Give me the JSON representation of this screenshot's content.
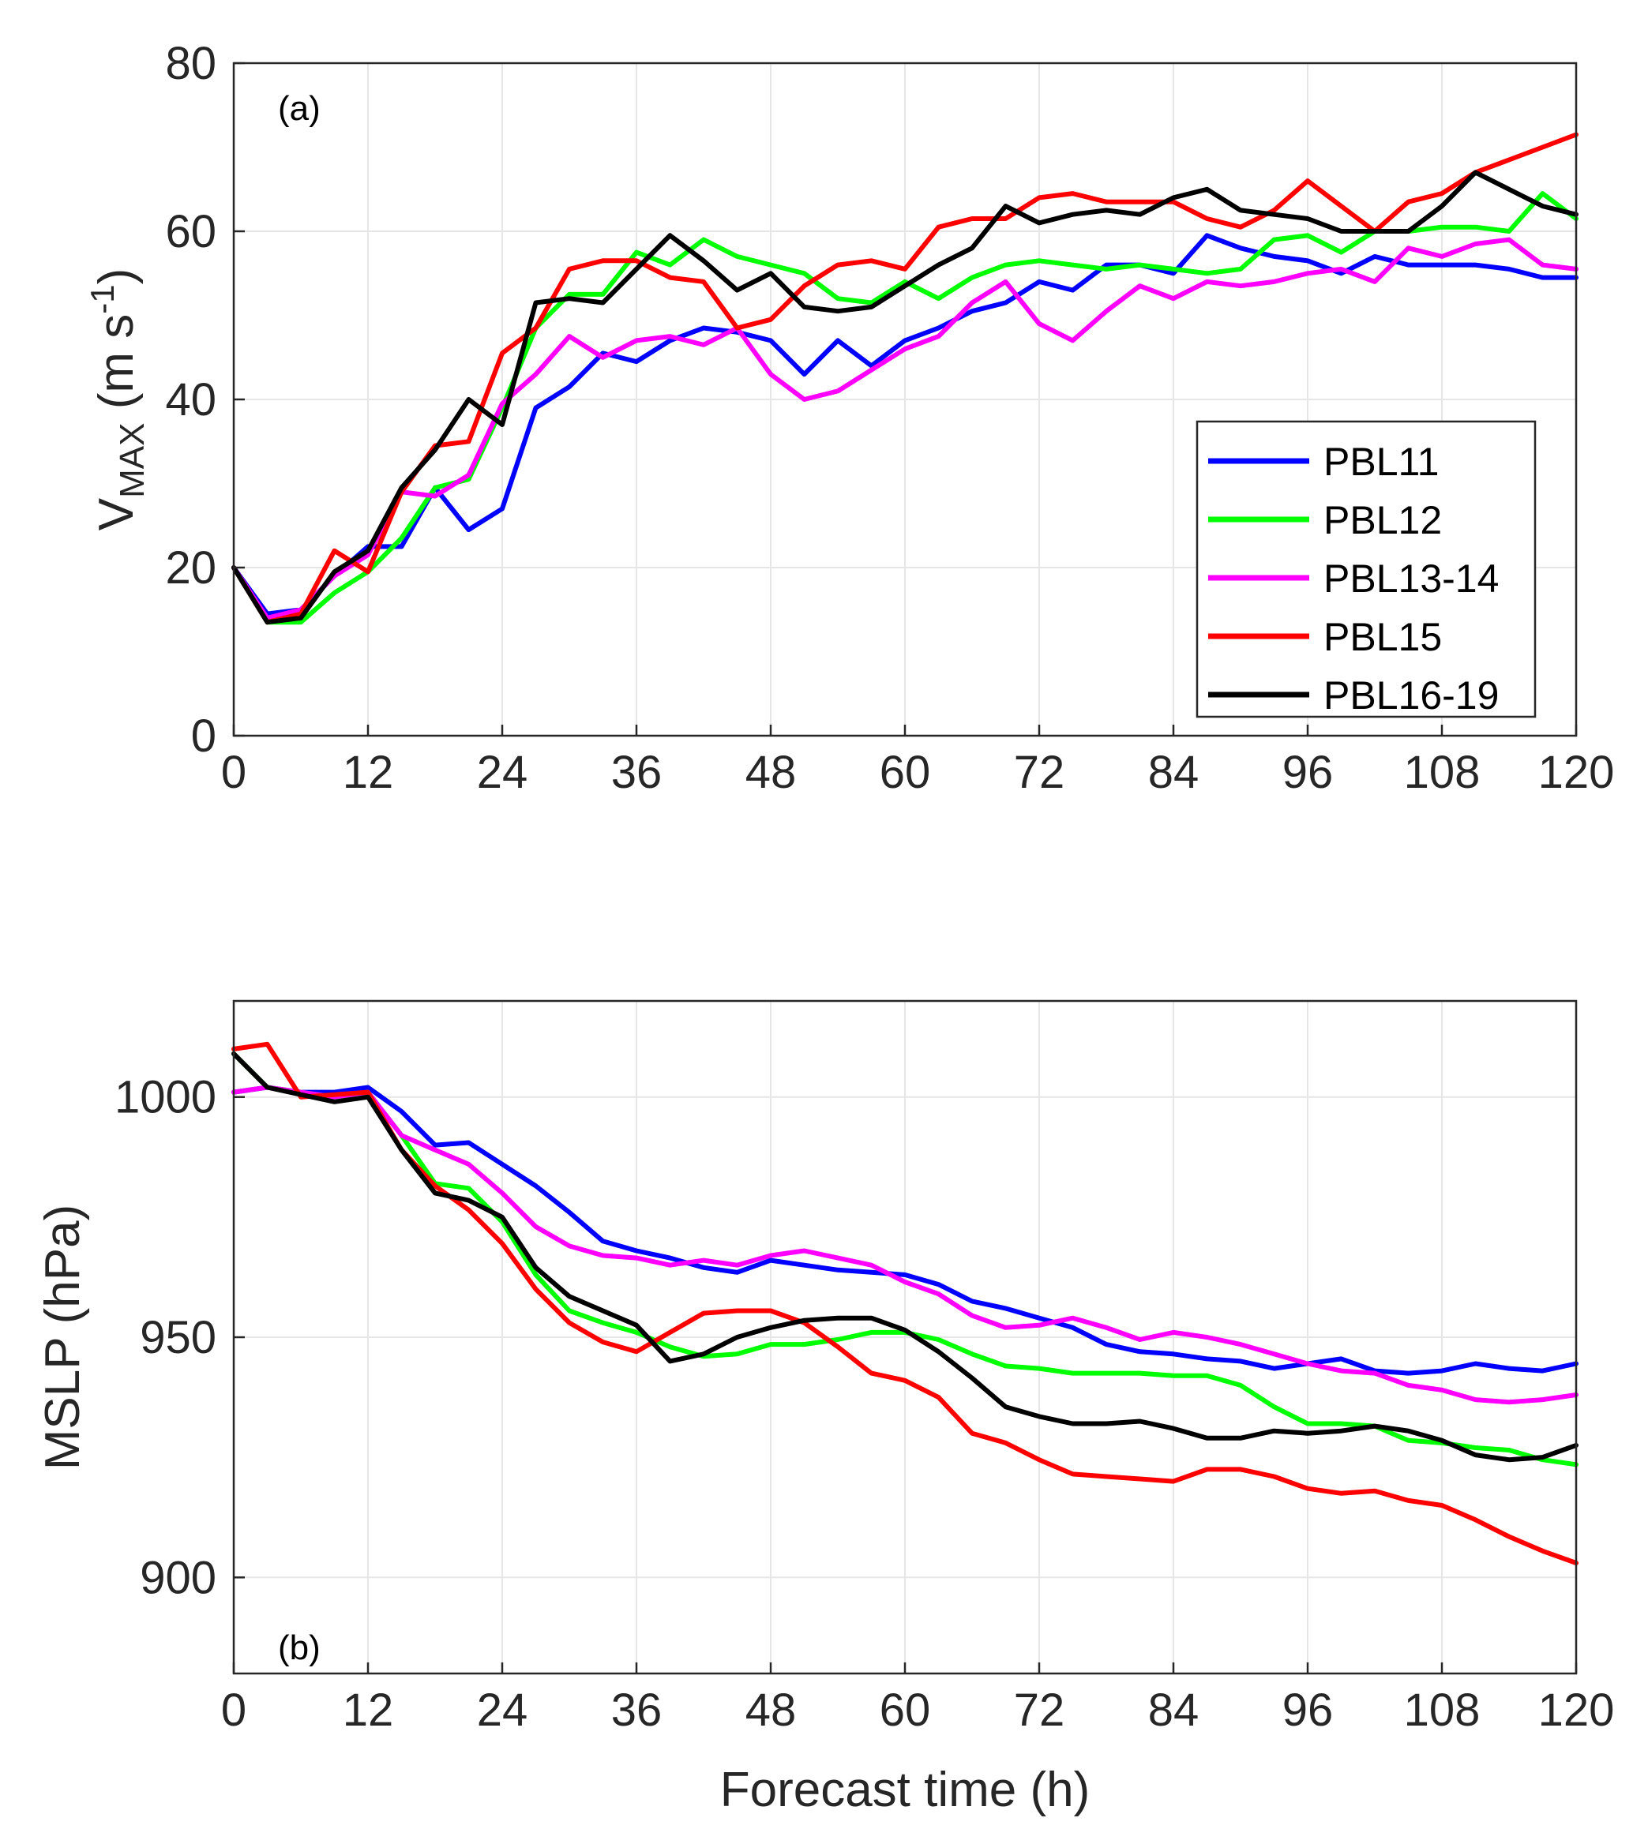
{
  "chart_data": [
    {
      "type": "line",
      "panel_label": "(a)",
      "xlabel": "",
      "ylabel_main": "V",
      "ylabel_sub": "MAX",
      "ylabel_units_open": " (m s",
      "ylabel_units_sup": "-1",
      "ylabel_units_close": ")",
      "xlim": [
        0,
        120
      ],
      "ylim": [
        0,
        80
      ],
      "xticks": [
        "0",
        "12",
        "24",
        "36",
        "48",
        "60",
        "72",
        "84",
        "96",
        "108",
        "120"
      ],
      "yticks": [
        "0",
        "20",
        "40",
        "60",
        "80"
      ],
      "grid": true,
      "legend_position": "right-middle",
      "x": [
        0,
        3,
        6,
        9,
        12,
        15,
        18,
        21,
        24,
        27,
        30,
        33,
        36,
        39,
        42,
        45,
        48,
        51,
        54,
        57,
        60,
        63,
        66,
        69,
        72,
        75,
        78,
        81,
        84,
        87,
        90,
        93,
        96,
        99,
        102,
        105,
        108,
        111,
        114,
        117,
        120
      ],
      "series": [
        {
          "name": "PBL11",
          "color": "#0000ff",
          "values": [
            20,
            14.5,
            15,
            19,
            22.5,
            22.5,
            29.5,
            24.5,
            27,
            39,
            41.5,
            45.5,
            44.5,
            47,
            48.5,
            48,
            47,
            43,
            47,
            44,
            47,
            48.5,
            50.5,
            51.5,
            54,
            53,
            56,
            56,
            55,
            59.5,
            58,
            57,
            56.5,
            55,
            57,
            56,
            56,
            56,
            55.5,
            54.5,
            54.5
          ]
        },
        {
          "name": "PBL12",
          "color": "#00ff00",
          "values": [
            20,
            13.5,
            13.5,
            17,
            19.5,
            23.5,
            29.5,
            30.5,
            39,
            48.5,
            52.5,
            52.5,
            57.5,
            56,
            59,
            57,
            56,
            55,
            52,
            51.5,
            54,
            52,
            54.5,
            56,
            56.5,
            56,
            55.5,
            56,
            55.5,
            55,
            55.5,
            59,
            59.5,
            57.5,
            60,
            60,
            60.5,
            60.5,
            60,
            64.5,
            61.5
          ]
        },
        {
          "name": "PBL13-14",
          "color": "#ff00ff",
          "values": [
            20,
            14,
            15,
            19,
            21.5,
            29,
            28.5,
            31,
            39.5,
            43,
            47.5,
            45,
            47,
            47.5,
            46.5,
            48.5,
            43,
            40,
            41,
            43.5,
            46,
            47.5,
            51.5,
            54,
            49,
            47,
            50.5,
            53.5,
            52,
            54,
            53.5,
            54,
            55,
            55.5,
            54,
            58,
            57,
            58.5,
            59,
            56,
            55.5
          ]
        },
        {
          "name": "PBL15",
          "color": "#ff0000",
          "values": [
            20,
            13.5,
            14.5,
            22,
            19.5,
            29,
            34.5,
            35,
            45.5,
            48.5,
            55.5,
            56.5,
            56.5,
            54.5,
            54,
            48.5,
            49.5,
            53.5,
            56,
            56.5,
            55.5,
            60.5,
            61.5,
            61.5,
            64,
            64.5,
            63.5,
            63.5,
            63.5,
            61.5,
            60.5,
            62.5,
            66,
            63,
            60,
            63.5,
            64.5,
            67,
            68.5,
            70,
            71.5
          ]
        },
        {
          "name": "PBL16-19",
          "color": "#000000",
          "values": [
            20,
            13.5,
            14,
            19.5,
            22,
            29.5,
            34,
            40,
            37,
            51.5,
            52,
            51.5,
            55.5,
            59.5,
            56.5,
            53,
            55,
            51,
            50.5,
            51,
            53.5,
            56,
            58,
            63,
            61,
            62,
            62.5,
            62,
            64,
            65,
            62.5,
            62,
            61.5,
            60,
            60,
            60,
            63,
            67,
            65,
            63,
            62
          ]
        }
      ]
    },
    {
      "type": "line",
      "panel_label": "(b)",
      "xlabel": "Forecast time (h)",
      "ylabel": "MSLP (hPa)",
      "xlim": [
        0,
        120
      ],
      "ylim": [
        880,
        1020
      ],
      "xticks": [
        "0",
        "12",
        "24",
        "36",
        "48",
        "60",
        "72",
        "84",
        "96",
        "108",
        "120"
      ],
      "yticks": [
        "900",
        "950",
        "1000"
      ],
      "grid": true,
      "x": [
        0,
        3,
        6,
        9,
        12,
        15,
        18,
        21,
        24,
        27,
        30,
        33,
        36,
        39,
        42,
        45,
        48,
        51,
        54,
        57,
        60,
        63,
        66,
        69,
        72,
        75,
        78,
        81,
        84,
        87,
        90,
        93,
        96,
        99,
        102,
        105,
        108,
        111,
        114,
        117,
        120
      ],
      "series": [
        {
          "name": "PBL11",
          "color": "#0000ff",
          "values": [
            1001,
            1002,
            1001,
            1001,
            1002,
            997,
            990,
            990.5,
            986,
            981.5,
            976,
            970,
            968,
            966.5,
            964.5,
            963.5,
            966,
            965,
            964,
            963.5,
            963,
            961,
            957.5,
            956,
            954,
            952,
            948.5,
            947,
            946.5,
            945.5,
            945,
            943.5,
            944.5,
            945.5,
            943,
            942.5,
            943,
            944.5,
            943.5,
            943,
            944.5
          ]
        },
        {
          "name": "PBL12",
          "color": "#00ff00",
          "values": [
            1009,
            1002,
            1001,
            1000,
            1001,
            992,
            982,
            981,
            974,
            963,
            955.5,
            953,
            951,
            948,
            946,
            946.5,
            948.5,
            948.5,
            949.5,
            951,
            951,
            949.5,
            946.5,
            944,
            943.5,
            942.5,
            942.5,
            942.5,
            942,
            942,
            940,
            935.5,
            932,
            932,
            931.5,
            928.5,
            928,
            927,
            926.5,
            924.5,
            923.5
          ]
        },
        {
          "name": "PBL13-14",
          "color": "#ff00ff",
          "values": [
            1001,
            1002,
            1001,
            1000,
            1001,
            992,
            989,
            986,
            980,
            973,
            969,
            967,
            966.5,
            965,
            966,
            965,
            967,
            968,
            966.5,
            965,
            961.5,
            959,
            954.5,
            952,
            952.5,
            954,
            952,
            949.5,
            951,
            950,
            948.5,
            946.5,
            944.5,
            943,
            942.5,
            940,
            939,
            937,
            936.5,
            937,
            938
          ]
        },
        {
          "name": "PBL15",
          "color": "#ff0000",
          "values": [
            1010,
            1011,
            1000,
            1000.5,
            1001,
            989,
            981.5,
            976.5,
            969.5,
            960,
            953,
            949,
            947,
            951,
            955,
            955.5,
            955.5,
            953,
            948,
            942.5,
            941,
            937.5,
            930,
            928,
            924.5,
            921.5,
            921,
            920.5,
            920,
            922.5,
            922.5,
            921,
            918.5,
            917.5,
            918,
            916,
            915,
            912,
            908.5,
            905.5,
            903
          ]
        },
        {
          "name": "PBL16-19",
          "color": "#000000",
          "values": [
            1009,
            1002,
            1000.5,
            999,
            1000,
            989,
            980,
            978.5,
            975,
            964.5,
            958.5,
            955.5,
            952.5,
            945,
            946.5,
            950,
            952,
            953.5,
            954,
            954,
            951.5,
            947,
            941.5,
            935.5,
            933.5,
            932,
            932,
            932.5,
            931,
            929,
            929,
            930.5,
            930,
            930.5,
            931.5,
            930.5,
            928.5,
            925.5,
            924.5,
            925,
            927.5
          ]
        }
      ]
    }
  ]
}
